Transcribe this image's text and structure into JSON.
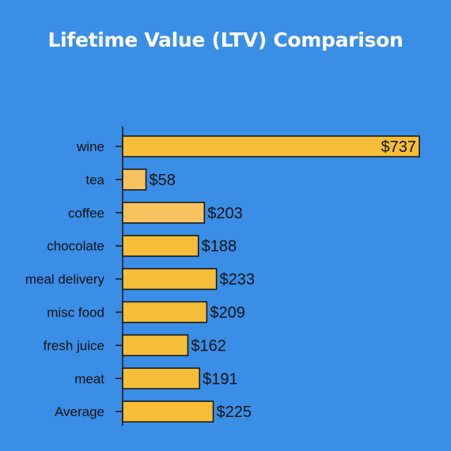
{
  "chart_data": {
    "type": "bar",
    "orientation": "horizontal",
    "title": "Lifetime Value (LTV) Comparison",
    "categories": [
      "wine",
      "tea",
      "coffee",
      "chocolate",
      "meal delivery",
      "misc food",
      "fresh juice",
      "meat",
      "Average"
    ],
    "values": [
      737,
      58,
      203,
      188,
      233,
      209,
      162,
      191,
      225
    ],
    "value_labels": [
      "$737",
      "$58",
      "$203",
      "$188",
      "$233",
      "$209",
      "$162",
      "$191",
      "$225"
    ],
    "xlim": [
      0,
      737
    ],
    "grid": false,
    "legend": "none"
  },
  "colors": {
    "background": "#3a8ee6",
    "bar_primary": "#f6be38",
    "bar_light": "#f8c35f",
    "bar_outline": "#111111",
    "title": "#ffffff"
  }
}
